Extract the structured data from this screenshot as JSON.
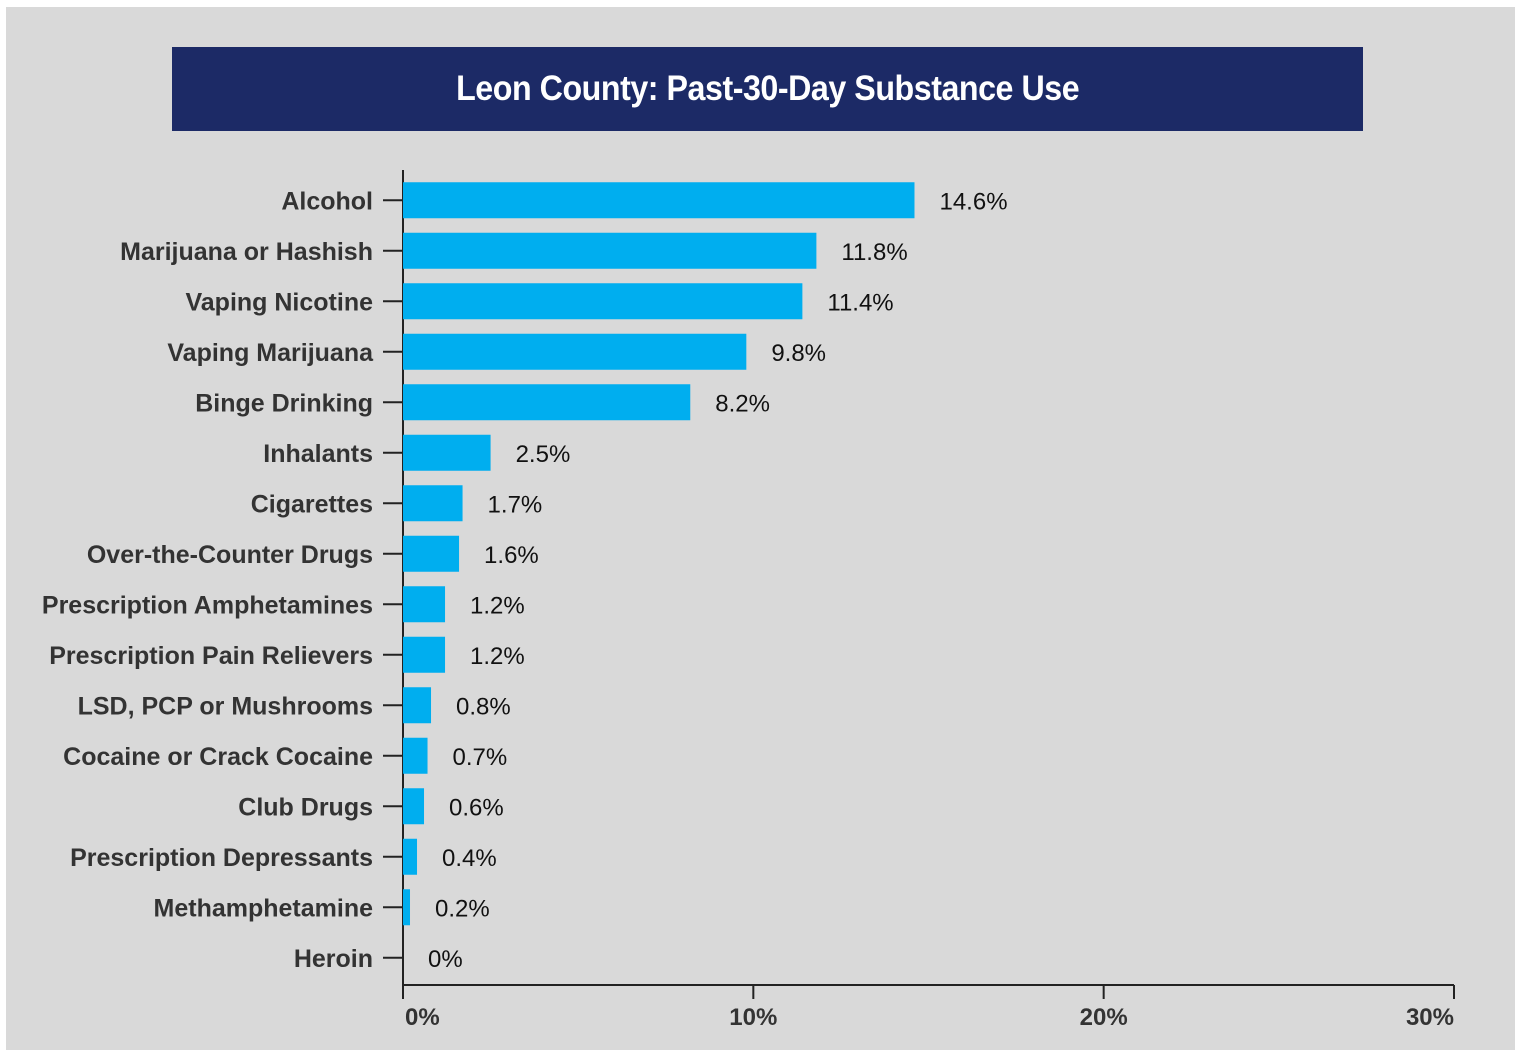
{
  "title": "Leon County: Past-30-Day Substance Use",
  "colors": {
    "background": "#d9d9d9",
    "title_banner": "#1c2a66",
    "bar": "#00aeef"
  },
  "chart_data": {
    "type": "bar",
    "orientation": "horizontal",
    "title": "Leon County: Past-30-Day Substance Use",
    "xlabel": "",
    "ylabel": "",
    "xlim": [
      0,
      30
    ],
    "x_ticks": [
      "0%",
      "10%",
      "20%",
      "30%"
    ],
    "grid": false,
    "categories": [
      "Alcohol",
      "Marijuana or Hashish",
      "Vaping Nicotine",
      "Vaping Marijuana",
      "Binge Drinking",
      "Inhalants",
      "Cigarettes",
      "Over-the-Counter Drugs",
      "Prescription Amphetamines",
      "Prescription Pain Relievers",
      "LSD, PCP or Mushrooms",
      "Cocaine or Crack Cocaine",
      "Club Drugs",
      "Prescription Depressants",
      "Methamphetamine",
      "Heroin"
    ],
    "values": [
      14.6,
      11.8,
      11.4,
      9.8,
      8.2,
      2.5,
      1.7,
      1.6,
      1.2,
      1.2,
      0.8,
      0.7,
      0.6,
      0.4,
      0.2,
      0
    ],
    "value_labels": [
      "14.6%",
      "11.8%",
      "11.4%",
      "9.8%",
      "8.2%",
      "2.5%",
      "1.7%",
      "1.6%",
      "1.2%",
      "1.2%",
      "0.8%",
      "0.7%",
      "0.6%",
      "0.4%",
      "0.2%",
      "0%"
    ]
  }
}
